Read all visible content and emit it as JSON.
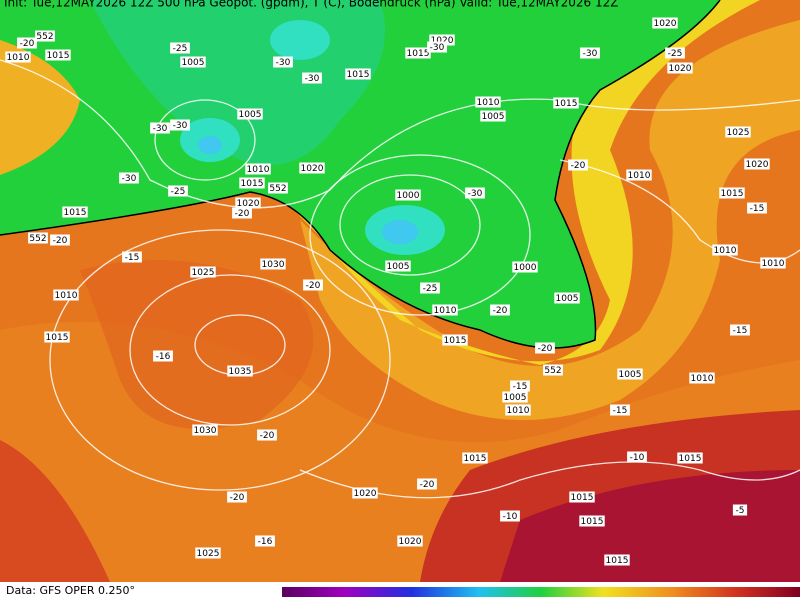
{
  "header": "Init: Tue,12MAY2026 12Z   500 hPa Geopot. (gpdm), T (C), Bodendruck (hPa)   Valid: Tue,12MAY2026 12Z",
  "footer": "Data: GFS OPER 0.250°",
  "labels": [
    "552",
    "1010",
    "1015",
    "-20",
    "1005",
    "-25",
    "-30",
    "-30",
    "1015",
    "1015",
    "1020",
    "-30",
    "1020",
    "1020",
    "-25",
    "-30",
    "1010",
    "1005",
    "1015",
    "1005",
    "-30",
    "-30",
    "1010",
    "1015",
    "1020",
    "552",
    "1020",
    "-20",
    "-25",
    "-30",
    "1015",
    "552",
    "-20",
    "1000",
    "-30",
    "1005",
    "1000",
    "-15",
    "1025",
    "1030",
    "-20",
    "1010",
    "1015",
    "1005",
    "-20",
    "-25",
    "1010",
    "1015",
    "-20",
    "552",
    "-16",
    "1035",
    "1025",
    "-20",
    "1010",
    "1020",
    "1015",
    "-15",
    "1010",
    "1010",
    "-15",
    "1005",
    "1010",
    "1005",
    "1010",
    "-15",
    "-15",
    "1030",
    "-20",
    "1015",
    "-10",
    "1015",
    "1020",
    "-20",
    "-20",
    "1015",
    "-10",
    "1015",
    "-5",
    "1020",
    "-16",
    "1025",
    "1015"
  ]
}
